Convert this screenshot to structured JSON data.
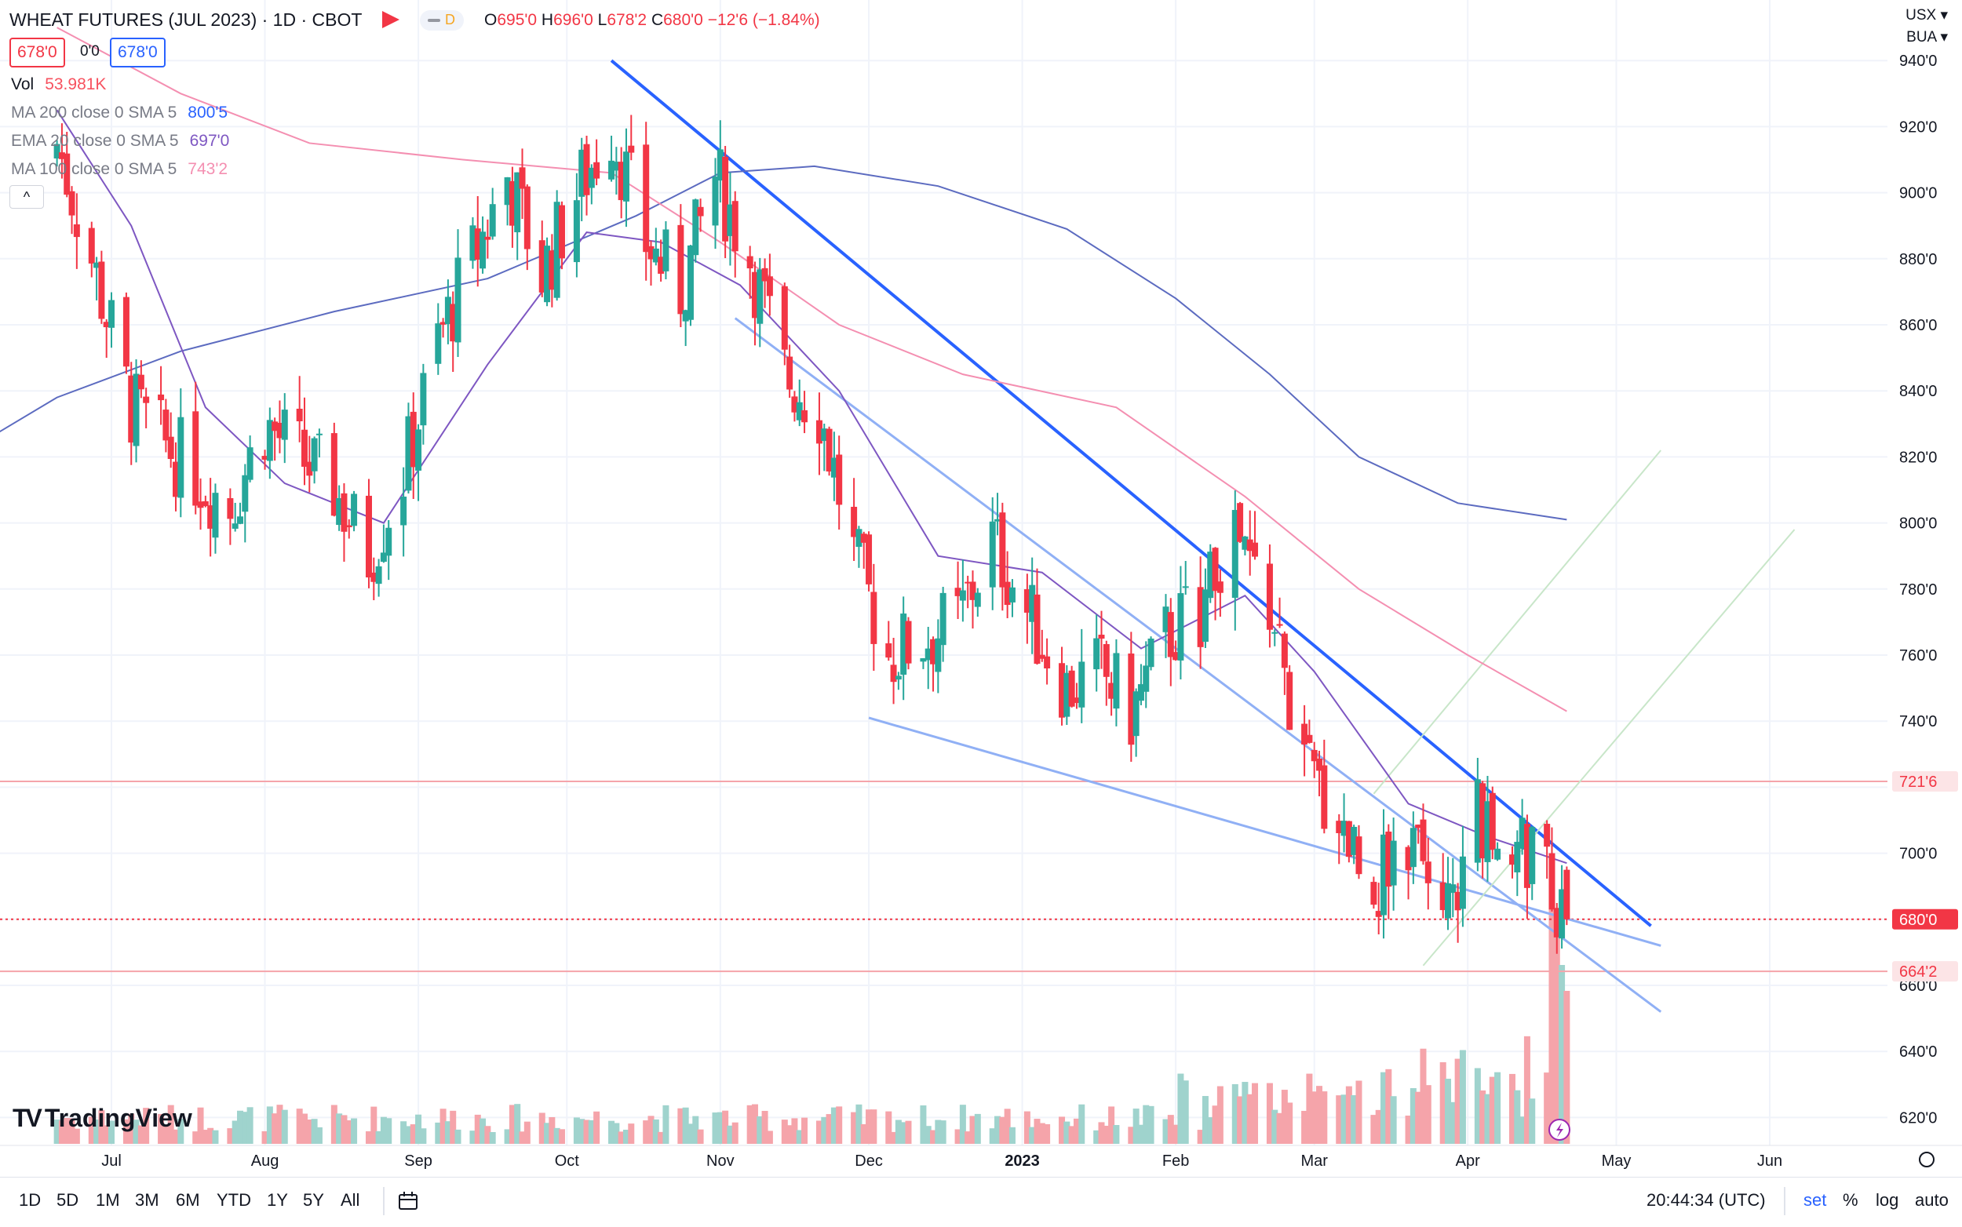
{
  "header": {
    "symbol_title": "WHEAT FUTURES (JUL 2023) · 1D · CBOT",
    "d_badge": "D",
    "ohlc": {
      "o_label": "O",
      "o_value": "695'0",
      "h_label": "H",
      "h_value": "696'0",
      "l_label": "L",
      "l_value": "678'2",
      "c_label": "C",
      "c_value": "680'0",
      "change": "−12'6 (−1.84%)"
    },
    "bid": "678'0",
    "spread": "0'0",
    "ask": "678'0"
  },
  "indicators": [
    {
      "label": "Vol",
      "value": "53.981K",
      "color": "#f7525f"
    },
    {
      "label": "MA 200 close 0 SMA 5",
      "value": "800'5",
      "color": "#2962ff"
    },
    {
      "label": "EMA 20 close 0 SMA 5",
      "value": "697'0",
      "color": "#7e57c2"
    },
    {
      "label": "MA 100 close 0 SMA 5",
      "value": "743'2",
      "color": "#f48fb1"
    }
  ],
  "collapse_symbol": "^",
  "price_scale": {
    "currency": "USX",
    "unit": "BUA",
    "labels": [
      "940'0",
      "920'0",
      "900'0",
      "880'0",
      "860'0",
      "840'0",
      "820'0",
      "800'0",
      "780'0",
      "760'0",
      "740'0",
      "700'0",
      "660'0",
      "640'0",
      "620'0"
    ],
    "tags": [
      {
        "text": "721'6",
        "value": 721.75,
        "bg": "#fce4e6",
        "fg": "#f23645"
      },
      {
        "text": "680'0",
        "value": 680,
        "bg": "#f23645",
        "fg": "#ffffff"
      },
      {
        "text": "664'2",
        "value": 664.25,
        "bg": "#fce4e6",
        "fg": "#f23645"
      }
    ]
  },
  "time_axis": {
    "labels": [
      {
        "text": "Jul",
        "bold": false
      },
      {
        "text": "Aug",
        "bold": false
      },
      {
        "text": "Sep",
        "bold": false
      },
      {
        "text": "Oct",
        "bold": false
      },
      {
        "text": "Nov",
        "bold": false
      },
      {
        "text": "Dec",
        "bold": false
      },
      {
        "text": "2023",
        "bold": true
      },
      {
        "text": "Feb",
        "bold": false
      },
      {
        "text": "Mar",
        "bold": false
      },
      {
        "text": "Apr",
        "bold": false
      },
      {
        "text": "May",
        "bold": false
      },
      {
        "text": "Jun",
        "bold": false
      }
    ]
  },
  "bottom_bar": {
    "ranges": [
      "1D",
      "5D",
      "1M",
      "3M",
      "6M",
      "YTD",
      "1Y",
      "5Y",
      "All"
    ],
    "time": "20:44:34 (UTC)",
    "set": "set",
    "percent": "%",
    "log": "log",
    "auto": "auto"
  },
  "logo_text": "TradingView",
  "colors": {
    "up": "#26a69a",
    "down": "#f23645",
    "vol_up": "#9fd3cd",
    "vol_down": "#f5a4aa",
    "ma200": "#5c6bc0",
    "ema20": "#7e57c2",
    "ma100": "#f48fb1",
    "trend_main": "#2962ff",
    "trend_light": "#90b0f5",
    "channel": "#c8e6c9",
    "hline": "#f5a4aa"
  },
  "chart_data": {
    "type": "candlestick",
    "title": "WHEAT FUTURES (JUL 2023) · 1D · CBOT",
    "timeframe": "1D",
    "x_range": [
      "2022-06-27",
      "2023-06-10"
    ],
    "ylim": [
      610,
      945
    ],
    "last_price": 680.0,
    "horizontal_levels": [
      721.75,
      664.25
    ],
    "monthly_ohlc_approx": [
      {
        "month": "2022-07",
        "open": 925,
        "high": 945,
        "low": 780,
        "close": 815
      },
      {
        "month": "2022-08",
        "open": 815,
        "high": 855,
        "low": 775,
        "close": 830
      },
      {
        "month": "2022-09",
        "open": 830,
        "high": 925,
        "low": 800,
        "close": 890
      },
      {
        "month": "2022-10",
        "open": 890,
        "high": 945,
        "low": 855,
        "close": 890
      },
      {
        "month": "2022-11",
        "open": 890,
        "high": 925,
        "low": 790,
        "close": 790
      },
      {
        "month": "2022-12",
        "open": 790,
        "high": 810,
        "low": 740,
        "close": 785
      },
      {
        "month": "2023-01",
        "open": 785,
        "high": 795,
        "low": 722,
        "close": 780
      },
      {
        "month": "2023-02",
        "open": 780,
        "high": 810,
        "low": 722,
        "close": 735
      },
      {
        "month": "2023-03",
        "open": 735,
        "high": 735,
        "low": 664,
        "close": 710
      },
      {
        "month": "2023-04",
        "open": 710,
        "high": 718,
        "low": 678,
        "close": 680
      }
    ],
    "moving_averages": [
      {
        "name": "MA 200",
        "last": 800.625
      },
      {
        "name": "EMA 20",
        "last": 697.0
      },
      {
        "name": "MA 100",
        "last": 743.25
      }
    ],
    "volume_last": "53.981K",
    "grid": true,
    "legend": "top-left"
  }
}
